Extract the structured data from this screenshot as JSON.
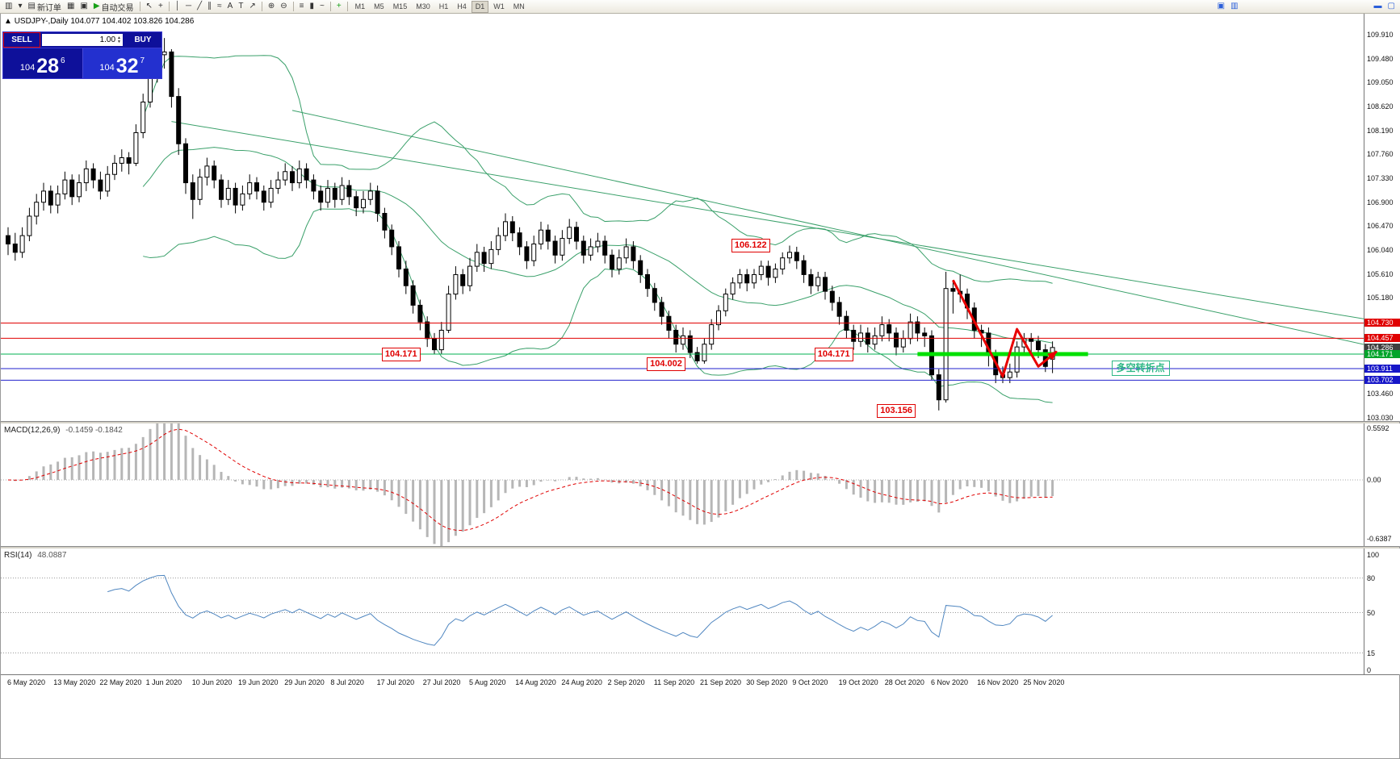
{
  "toolbar": {
    "new_order": "新订单",
    "auto_trading": "自动交易",
    "items": [
      {
        "t": "btn",
        "name": "chart-window-icon",
        "g": "▥"
      },
      {
        "t": "btn",
        "name": "window-caret-icon",
        "g": "▾"
      },
      {
        "t": "btn",
        "name": "new-order-button",
        "g": "▤",
        "label_key": "new_order"
      },
      {
        "t": "btn",
        "name": "chart-layout-icon",
        "g": "▦"
      },
      {
        "t": "btn",
        "name": "profiles-icon",
        "g": "▣"
      },
      {
        "t": "btn",
        "name": "auto-trading-button",
        "g": "▶",
        "gc": "#18a018",
        "label_key": "auto_trading"
      },
      {
        "t": "sep"
      },
      {
        "t": "btn",
        "name": "cursor-icon",
        "g": "↖"
      },
      {
        "t": "btn",
        "name": "crosshair-icon",
        "g": "+"
      },
      {
        "t": "sep"
      },
      {
        "t": "btn",
        "name": "vertical-line-icon",
        "g": "│"
      },
      {
        "t": "btn",
        "name": "horizontal-line-icon",
        "g": "─"
      },
      {
        "t": "btn",
        "name": "trendline-icon",
        "g": "╱"
      },
      {
        "t": "btn",
        "name": "channel-icon",
        "g": "∥"
      },
      {
        "t": "btn",
        "name": "fibonacci-icon",
        "g": "≈"
      },
      {
        "t": "btn",
        "name": "text-tool-icon",
        "g": "A"
      },
      {
        "t": "btn",
        "name": "label-tool-icon",
        "g": "T"
      },
      {
        "t": "btn",
        "name": "arrow-tool-icon",
        "g": "↗"
      },
      {
        "t": "sep"
      },
      {
        "t": "btn",
        "name": "zoom-in-icon",
        "g": "⊕"
      },
      {
        "t": "btn",
        "name": "zoom-out-icon",
        "g": "⊖"
      },
      {
        "t": "sep"
      },
      {
        "t": "btn",
        "name": "bar-chart-mode-icon",
        "g": "≡"
      },
      {
        "t": "btn",
        "name": "candle-chart-mode-icon",
        "g": "▮"
      },
      {
        "t": "btn",
        "name": "line-chart-mode-icon",
        "g": "~"
      },
      {
        "t": "sep"
      },
      {
        "t": "btn",
        "name": "indicators-add-icon",
        "g": "+",
        "gc": "#18a018"
      },
      {
        "t": "sep"
      }
    ],
    "timeframes": {
      "list": [
        "M1",
        "M5",
        "M15",
        "M30",
        "H1",
        "H4",
        "D1",
        "W1",
        "MN"
      ],
      "active": "D1"
    },
    "right_icons": [
      {
        "name": "data-window-icon",
        "g": "▣",
        "gc": "#2b5fd9"
      },
      {
        "name": "strategy-tester-icon",
        "g": "▥",
        "gc": "#2b5fd9"
      }
    ],
    "corner_icons": [
      {
        "name": "minimize-window-icon",
        "g": "▬",
        "gc": "#2b5fd9"
      },
      {
        "name": "restore-window-icon",
        "g": "▢",
        "gc": "#2b5fd9"
      }
    ]
  },
  "chart": {
    "title_symbol": "USDJPY-,Daily",
    "title_ohlc": "104.077 104.402 103.826 104.286"
  },
  "trade_panel": {
    "sell_label": "SELL",
    "buy_label": "BUY",
    "volume": "1.00",
    "sell": {
      "head": "104",
      "big": "28",
      "sup": "6"
    },
    "buy": {
      "head": "104",
      "big": "32",
      "sup": "7"
    }
  },
  "chart_data": {
    "type": "candlestick",
    "symbol": "USDJPY",
    "timeframe": "Daily",
    "y_axis": {
      "max": 109.91,
      "min": 103.03,
      "ticks": [
        "109.910",
        "109.480",
        "109.050",
        "108.620",
        "108.190",
        "107.760",
        "107.330",
        "106.900",
        "106.470",
        "106.040",
        "105.610",
        "105.180",
        "103.460",
        "103.030"
      ]
    },
    "axis_badges": [
      {
        "text": "104.730",
        "color": "#e00000"
      },
      {
        "text": "104.457",
        "color": "#e00000"
      },
      {
        "text": "104.286",
        "color": "#404040"
      },
      {
        "text": "104.171",
        "color": "#00a42a"
      },
      {
        "text": "103.911",
        "color": "#1616c8"
      },
      {
        "text": "103.702",
        "color": "#1616c8"
      }
    ],
    "price_lines": [
      {
        "price": 104.73,
        "color": "#e00000",
        "width": 1
      },
      {
        "price": 104.457,
        "color": "#e00000",
        "width": 1
      },
      {
        "price": 104.171,
        "color": "#00b050",
        "width": 1
      },
      {
        "price": 103.911,
        "color": "#2222cc",
        "width": 1
      },
      {
        "price": 103.702,
        "color": "#2222cc",
        "width": 1
      }
    ],
    "green_zone": {
      "price": 104.171,
      "from_idx": 128,
      "to_idx": 152,
      "color": "#00e000",
      "width": 5
    },
    "trendlines": [
      {
        "from": [
          23,
          108.35
        ],
        "to": [
          210,
          104.4
        ]
      },
      {
        "from": [
          40,
          108.55
        ],
        "to": [
          205,
          103.95
        ]
      }
    ],
    "annotations": {
      "price_tags": [
        {
          "text": "106.122",
          "idx": 101.8,
          "price": 106.122
        },
        {
          "text": "104.171",
          "idx": 52.6,
          "price": 104.171
        },
        {
          "text": "104.002",
          "idx": 89.9,
          "price": 104.002
        },
        {
          "text": "104.171",
          "idx": 113.5,
          "price": 104.171
        },
        {
          "text": "103.156",
          "idx": 122.3,
          "price": 103.156
        }
      ],
      "note": {
        "text": "多空转折点",
        "idx": 155.3,
        "price": 103.92
      },
      "zigzag": {
        "color": "#e80000",
        "points": [
          [
            133,
            105.5
          ],
          [
            140,
            103.77
          ],
          [
            142,
            104.62
          ],
          [
            145,
            103.95
          ],
          [
            147.6,
            104.22
          ]
        ]
      }
    },
    "indicators": {
      "bollinger": {
        "period": 20,
        "deviation": 2,
        "color": "#3aa06a"
      },
      "macd": {
        "name": "MACD(12,26,9)",
        "values": "-0.1459 -0.1842",
        "axis_labels": [
          {
            "text": "0.5592",
            "v": 0.5592
          },
          {
            "text": "0.00",
            "v": 0
          },
          {
            "text": "-0.6387",
            "v": -0.6387
          }
        ],
        "histogram_color": "#b6b6b6",
        "signal_color": "#e00000"
      },
      "rsi": {
        "name": "RSI(14)",
        "value": "48.0887",
        "color": "#4f86c0",
        "levels": [
          80,
          50,
          15
        ],
        "axis_labels": [
          {
            "text": "100",
            "v": 100
          },
          {
            "text": "80",
            "v": 80
          },
          {
            "text": "50",
            "v": 50
          },
          {
            "text": "15",
            "v": 15
          },
          {
            "text": "0",
            "v": 0
          }
        ]
      }
    },
    "x_labels": [
      "6 May 2020",
      "13 May 2020",
      "22 May 2020",
      "1 Jun 2020",
      "10 Jun 2020",
      "19 Jun 2020",
      "29 Jun 2020",
      "8 Jul 2020",
      "17 Jul 2020",
      "27 Jul 2020",
      "5 Aug 2020",
      "14 Aug 2020",
      "24 Aug 2020",
      "2 Sep 2020",
      "11 Sep 2020",
      "21 Sep 2020",
      "30 Sep 2020",
      "9 Oct 2020",
      "19 Oct 2020",
      "28 Oct 2020",
      "6 Nov 2020",
      "16 Nov 2020",
      "25 Nov 2020"
    ],
    "candles": [
      [
        106.3,
        106.45,
        105.95,
        106.15
      ],
      [
        106.15,
        106.35,
        105.85,
        106.0
      ],
      [
        106.0,
        106.45,
        105.9,
        106.3
      ],
      [
        106.3,
        106.8,
        106.2,
        106.65
      ],
      [
        106.65,
        107.05,
        106.5,
        106.9
      ],
      [
        106.9,
        107.25,
        106.75,
        107.1
      ],
      [
        107.1,
        107.2,
        106.7,
        106.85
      ],
      [
        106.85,
        107.2,
        106.7,
        107.05
      ],
      [
        107.05,
        107.45,
        106.95,
        107.3
      ],
      [
        107.3,
        107.4,
        106.85,
        107.0
      ],
      [
        107.0,
        107.4,
        106.9,
        107.25
      ],
      [
        107.25,
        107.65,
        107.1,
        107.5
      ],
      [
        107.5,
        107.6,
        107.15,
        107.3
      ],
      [
        107.3,
        107.45,
        106.95,
        107.1
      ],
      [
        107.1,
        107.55,
        107.0,
        107.4
      ],
      [
        107.4,
        107.75,
        107.3,
        107.6
      ],
      [
        107.6,
        107.85,
        107.45,
        107.7
      ],
      [
        107.7,
        107.8,
        107.4,
        107.6
      ],
      [
        107.6,
        108.3,
        107.55,
        108.15
      ],
      [
        108.15,
        108.85,
        108.05,
        108.7
      ],
      [
        108.7,
        109.25,
        108.6,
        109.15
      ],
      [
        109.15,
        109.7,
        109.05,
        109.55
      ],
      [
        109.55,
        109.85,
        109.3,
        109.6
      ],
      [
        109.6,
        109.65,
        108.6,
        108.8
      ],
      [
        108.8,
        108.95,
        107.75,
        107.95
      ],
      [
        107.95,
        108.05,
        107.05,
        107.25
      ],
      [
        107.25,
        107.4,
        106.6,
        106.95
      ],
      [
        106.95,
        107.5,
        106.85,
        107.35
      ],
      [
        107.35,
        107.7,
        107.2,
        107.55
      ],
      [
        107.55,
        107.65,
        107.15,
        107.3
      ],
      [
        107.3,
        107.4,
        106.8,
        106.95
      ],
      [
        106.95,
        107.3,
        106.85,
        107.15
      ],
      [
        107.15,
        107.25,
        106.7,
        106.85
      ],
      [
        106.85,
        107.2,
        106.75,
        107.05
      ],
      [
        107.05,
        107.4,
        106.95,
        107.25
      ],
      [
        107.25,
        107.35,
        106.95,
        107.1
      ],
      [
        107.1,
        107.2,
        106.75,
        106.9
      ],
      [
        106.9,
        107.3,
        106.8,
        107.15
      ],
      [
        107.15,
        107.45,
        107.05,
        107.3
      ],
      [
        107.3,
        107.6,
        107.2,
        107.45
      ],
      [
        107.45,
        107.55,
        107.1,
        107.25
      ],
      [
        107.25,
        107.65,
        107.15,
        107.5
      ],
      [
        107.5,
        107.6,
        107.15,
        107.3
      ],
      [
        107.3,
        107.4,
        106.95,
        107.1
      ],
      [
        107.1,
        107.2,
        106.75,
        106.9
      ],
      [
        106.9,
        107.3,
        106.8,
        107.15
      ],
      [
        107.15,
        107.25,
        106.8,
        106.95
      ],
      [
        106.95,
        107.35,
        106.85,
        107.2
      ],
      [
        107.2,
        107.3,
        106.85,
        107.0
      ],
      [
        107.0,
        107.1,
        106.65,
        106.8
      ],
      [
        106.8,
        107.1,
        106.7,
        106.95
      ],
      [
        106.95,
        107.25,
        106.85,
        107.1
      ],
      [
        107.1,
        107.2,
        106.55,
        106.7
      ],
      [
        106.7,
        106.8,
        106.25,
        106.4
      ],
      [
        106.4,
        106.5,
        105.95,
        106.1
      ],
      [
        106.1,
        106.2,
        105.55,
        105.7
      ],
      [
        105.7,
        105.85,
        105.25,
        105.4
      ],
      [
        105.4,
        105.5,
        104.9,
        105.05
      ],
      [
        105.05,
        105.15,
        104.6,
        104.75
      ],
      [
        104.75,
        104.85,
        104.3,
        104.45
      ],
      [
        104.45,
        104.55,
        104.17,
        104.25
      ],
      [
        104.25,
        104.75,
        104.18,
        104.6
      ],
      [
        104.6,
        105.4,
        104.55,
        105.25
      ],
      [
        105.25,
        105.75,
        105.15,
        105.6
      ],
      [
        105.6,
        105.7,
        105.25,
        105.4
      ],
      [
        105.4,
        105.9,
        105.3,
        105.75
      ],
      [
        105.75,
        106.15,
        105.65,
        106.0
      ],
      [
        106.0,
        106.1,
        105.65,
        105.8
      ],
      [
        105.8,
        106.2,
        105.7,
        106.05
      ],
      [
        106.05,
        106.45,
        105.95,
        106.3
      ],
      [
        106.3,
        106.7,
        106.2,
        106.55
      ],
      [
        106.55,
        106.65,
        106.2,
        106.35
      ],
      [
        106.35,
        106.45,
        105.95,
        106.1
      ],
      [
        106.1,
        106.2,
        105.7,
        105.85
      ],
      [
        105.85,
        106.3,
        105.75,
        106.15
      ],
      [
        106.15,
        106.55,
        106.05,
        106.4
      ],
      [
        106.4,
        106.5,
        106.05,
        106.2
      ],
      [
        106.2,
        106.3,
        105.8,
        105.95
      ],
      [
        105.95,
        106.4,
        105.85,
        106.25
      ],
      [
        106.25,
        106.6,
        106.15,
        106.45
      ],
      [
        106.45,
        106.55,
        106.05,
        106.2
      ],
      [
        106.2,
        106.3,
        105.8,
        105.95
      ],
      [
        105.95,
        106.25,
        105.85,
        106.1
      ],
      [
        106.1,
        106.35,
        106.0,
        106.2
      ],
      [
        106.2,
        106.3,
        105.8,
        105.95
      ],
      [
        105.95,
        106.05,
        105.55,
        105.7
      ],
      [
        105.7,
        106.05,
        105.6,
        105.9
      ],
      [
        105.9,
        106.25,
        105.8,
        106.1
      ],
      [
        106.1,
        106.2,
        105.7,
        105.85
      ],
      [
        105.85,
        105.95,
        105.45,
        105.6
      ],
      [
        105.6,
        105.7,
        105.2,
        105.35
      ],
      [
        105.35,
        105.45,
        104.95,
        105.1
      ],
      [
        105.1,
        105.2,
        104.7,
        104.85
      ],
      [
        104.85,
        104.95,
        104.45,
        104.6
      ],
      [
        104.6,
        104.7,
        104.2,
        104.35
      ],
      [
        104.35,
        104.65,
        104.25,
        104.5
      ],
      [
        104.5,
        104.6,
        104.1,
        104.2
      ],
      [
        104.2,
        104.3,
        104.0,
        104.05
      ],
      [
        104.05,
        104.45,
        104.0,
        104.35
      ],
      [
        104.35,
        104.8,
        104.25,
        104.7
      ],
      [
        104.7,
        105.05,
        104.6,
        104.95
      ],
      [
        104.95,
        105.35,
        104.85,
        105.25
      ],
      [
        105.25,
        105.55,
        105.15,
        105.45
      ],
      [
        105.45,
        105.7,
        105.35,
        105.6
      ],
      [
        105.6,
        105.7,
        105.3,
        105.45
      ],
      [
        105.45,
        105.7,
        105.35,
        105.6
      ],
      [
        105.6,
        105.85,
        105.5,
        105.75
      ],
      [
        105.75,
        105.85,
        105.4,
        105.55
      ],
      [
        105.55,
        105.8,
        105.45,
        105.7
      ],
      [
        105.7,
        106.0,
        105.6,
        105.9
      ],
      [
        105.9,
        106.12,
        105.8,
        106.0
      ],
      [
        106.0,
        106.1,
        105.7,
        105.85
      ],
      [
        105.85,
        105.95,
        105.45,
        105.6
      ],
      [
        105.6,
        105.7,
        105.25,
        105.4
      ],
      [
        105.4,
        105.65,
        105.3,
        105.55
      ],
      [
        105.55,
        105.65,
        105.15,
        105.3
      ],
      [
        105.3,
        105.4,
        104.95,
        105.1
      ],
      [
        105.1,
        105.2,
        104.7,
        104.85
      ],
      [
        104.85,
        104.95,
        104.45,
        104.6
      ],
      [
        104.6,
        104.7,
        104.25,
        104.4
      ],
      [
        104.4,
        104.7,
        104.3,
        104.55
      ],
      [
        104.55,
        104.65,
        104.2,
        104.35
      ],
      [
        104.35,
        104.65,
        104.25,
        104.5
      ],
      [
        104.5,
        104.85,
        104.4,
        104.7
      ],
      [
        104.7,
        104.8,
        104.4,
        104.55
      ],
      [
        104.55,
        104.65,
        104.15,
        104.3
      ],
      [
        104.3,
        104.6,
        104.2,
        104.45
      ],
      [
        104.45,
        104.9,
        104.35,
        104.75
      ],
      [
        104.75,
        104.85,
        104.4,
        104.55
      ],
      [
        104.55,
        104.65,
        104.3,
        104.5
      ],
      [
        104.5,
        104.6,
        103.7,
        103.8
      ],
      [
        103.8,
        103.9,
        103.16,
        103.35
      ],
      [
        103.35,
        105.65,
        103.3,
        105.35
      ],
      [
        105.35,
        105.5,
        104.9,
        105.3
      ],
      [
        105.3,
        105.6,
        105.1,
        105.25
      ],
      [
        105.25,
        105.35,
        104.8,
        105.0
      ],
      [
        105.0,
        105.1,
        104.45,
        104.6
      ],
      [
        104.6,
        104.7,
        104.3,
        104.55
      ],
      [
        104.55,
        104.65,
        103.95,
        104.15
      ],
      [
        104.15,
        104.25,
        103.65,
        103.8
      ],
      [
        103.8,
        103.95,
        103.65,
        103.75
      ],
      [
        103.75,
        104.0,
        103.65,
        103.85
      ],
      [
        103.85,
        104.4,
        103.75,
        104.3
      ],
      [
        104.3,
        104.55,
        104.2,
        104.45
      ],
      [
        104.45,
        104.55,
        104.15,
        104.4
      ],
      [
        104.4,
        104.5,
        104.1,
        104.25
      ],
      [
        104.25,
        104.35,
        103.85,
        103.95
      ],
      [
        104.08,
        104.4,
        103.83,
        104.29
      ]
    ]
  }
}
